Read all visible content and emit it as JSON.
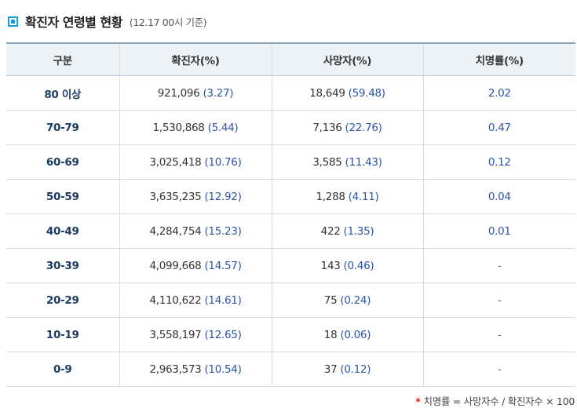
{
  "header": {
    "title": "확진자 연령별 현황",
    "subtitle": "(12.17 00시 기준)",
    "icon": "square-bullet-icon",
    "accent_color": "#1a9bd7"
  },
  "table": {
    "columns": [
      "구분",
      "확진자(%)",
      "사망자(%)",
      "치명률(%)"
    ],
    "rows": [
      {
        "group": "80 이상",
        "cases": "921,096",
        "cases_pct": "(3.27)",
        "deaths": "18,649",
        "deaths_pct": "(59.48)",
        "fatality": "2.02"
      },
      {
        "group": "70-79",
        "cases": "1,530,868",
        "cases_pct": "(5.44)",
        "deaths": "7,136",
        "deaths_pct": "(22.76)",
        "fatality": "0.47"
      },
      {
        "group": "60-69",
        "cases": "3,025,418",
        "cases_pct": "(10.76)",
        "deaths": "3,585",
        "deaths_pct": "(11.43)",
        "fatality": "0.12"
      },
      {
        "group": "50-59",
        "cases": "3,635,235",
        "cases_pct": "(12.92)",
        "deaths": "1,288",
        "deaths_pct": "(4.11)",
        "fatality": "0.04"
      },
      {
        "group": "40-49",
        "cases": "4,284,754",
        "cases_pct": "(15.23)",
        "deaths": "422",
        "deaths_pct": "(1.35)",
        "fatality": "0.01"
      },
      {
        "group": "30-39",
        "cases": "4,099,668",
        "cases_pct": "(14.57)",
        "deaths": "143",
        "deaths_pct": "(0.46)",
        "fatality": "-"
      },
      {
        "group": "20-29",
        "cases": "4,110,622",
        "cases_pct": "(14.61)",
        "deaths": "75",
        "deaths_pct": "(0.24)",
        "fatality": "-"
      },
      {
        "group": "10-19",
        "cases": "3,558,197",
        "cases_pct": "(12.65)",
        "deaths": "18",
        "deaths_pct": "(0.06)",
        "fatality": "-"
      },
      {
        "group": "0-9",
        "cases": "2,963,573",
        "cases_pct": "(10.54)",
        "deaths": "37",
        "deaths_pct": "(0.12)",
        "fatality": "-"
      }
    ]
  },
  "footnote": {
    "marker": "*",
    "text": "치명률 = 사망자수 / 확진자수 × 100",
    "marker_color": "#e02020"
  }
}
